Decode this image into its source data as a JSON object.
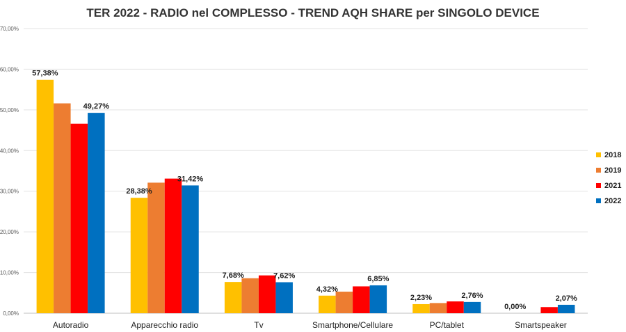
{
  "chart_data": {
    "type": "bar",
    "title": "TER 2022 - RADIO nel COMPLESSO - TREND AQH SHARE per SINGOLO DEVICE",
    "categories": [
      "Autoradio",
      "Apparecchio radio",
      "Tv",
      "Smartphone/Cellulare",
      "PC/tablet",
      "Smartspeaker"
    ],
    "series": [
      {
        "name": "2018",
        "color": "#FFC000",
        "values": [
          57.38,
          28.38,
          7.68,
          4.32,
          2.23,
          0.0
        ]
      },
      {
        "name": "2019",
        "color": "#ED7D31",
        "values": [
          51.6,
          32.1,
          8.6,
          5.3,
          2.5,
          0.0
        ]
      },
      {
        "name": "2021",
        "color": "#FF0000",
        "values": [
          46.6,
          33.1,
          9.3,
          6.6,
          2.9,
          1.5
        ]
      },
      {
        "name": "2022",
        "color": "#0070C0",
        "values": [
          49.27,
          31.42,
          7.62,
          6.85,
          2.76,
          2.07
        ]
      }
    ],
    "data_labels": [
      {
        "category": 0,
        "series": 0,
        "text": "57,38%"
      },
      {
        "category": 0,
        "series": 3,
        "text": "49,27%"
      },
      {
        "category": 1,
        "series": 0,
        "text": "28,38%"
      },
      {
        "category": 1,
        "series": 3,
        "text": "31,42%"
      },
      {
        "category": 2,
        "series": 0,
        "text": "7,68%"
      },
      {
        "category": 2,
        "series": 3,
        "text": "7,62%"
      },
      {
        "category": 3,
        "series": 0,
        "text": "4,32%"
      },
      {
        "category": 3,
        "series": 3,
        "text": "6,85%"
      },
      {
        "category": 4,
        "series": 0,
        "text": "2,23%"
      },
      {
        "category": 4,
        "series": 3,
        "text": "2,76%"
      },
      {
        "category": 5,
        "series": 0,
        "text": "0,00%"
      },
      {
        "category": 5,
        "series": 3,
        "text": "2,07%"
      }
    ],
    "yticks": [
      "0,00%",
      "10,00%",
      "20,00%",
      "30,00%",
      "40,00%",
      "50,00%",
      "60,00%",
      "70,00%"
    ],
    "ylim": [
      0,
      70
    ],
    "grid": true,
    "legend": "right"
  }
}
